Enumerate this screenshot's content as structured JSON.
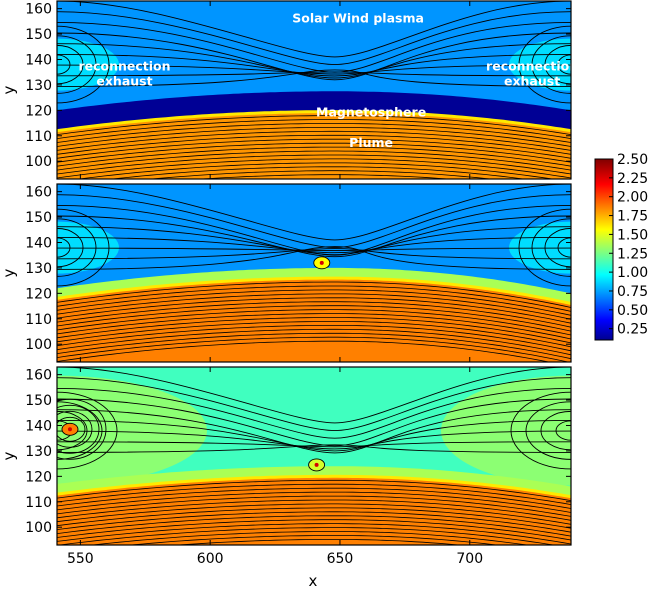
{
  "chart_data": {
    "type": "heatmap",
    "colormap": "jet",
    "x_label": "x",
    "y_label": "y",
    "xlim": [
      541,
      739
    ],
    "ylim": [
      93,
      163
    ],
    "x_ticks": [
      550,
      600,
      650,
      700
    ],
    "y_ticks": [
      100,
      110,
      120,
      130,
      140,
      150,
      160
    ],
    "colorbar": {
      "range": [
        0.1,
        2.5
      ],
      "ticks": [
        "0.25",
        "0.50",
        "0.75",
        "1.00",
        "1.25",
        "1.50",
        "1.75",
        "2.00",
        "2.25",
        "2.50"
      ]
    },
    "panels": [
      {
        "annotations": [
          {
            "lines": [
              "Solar Wind plasma"
            ],
            "x": 657,
            "y": 154.5
          },
          {
            "lines": [
              "reconnection",
              "exhaust"
            ],
            "x": 567,
            "y": 133
          },
          {
            "lines": [
              "reconnection",
              "exhaust"
            ],
            "x": 724,
            "y": 133
          },
          {
            "lines": [
              "Magnetosphere"
            ],
            "x": 662,
            "y": 117.5
          },
          {
            "lines": [
              "Plume"
            ],
            "x": 662,
            "y": 105.5
          }
        ],
        "plume_edge_y": [
          112,
          119.5,
          112
        ],
        "plume_value": 1.85,
        "magnetosphere_value": 0.15,
        "background_value": 0.75
      },
      {
        "annotations": [],
        "plume_edge_y": [
          118,
          126,
          116
        ],
        "plume_value": 1.9,
        "background_value": 0.75,
        "islands": [
          {
            "x": 643,
            "y": 132,
            "value": 1.6
          }
        ]
      },
      {
        "annotations": [],
        "plume_edge_y": [
          113,
          120,
          112
        ],
        "plume_value": 1.9,
        "background_value": 1.15,
        "islands": [
          {
            "x": 546,
            "y": 138.5,
            "value": 1.9
          },
          {
            "x": 641,
            "y": 124.5,
            "value": 1.5
          }
        ]
      }
    ]
  }
}
